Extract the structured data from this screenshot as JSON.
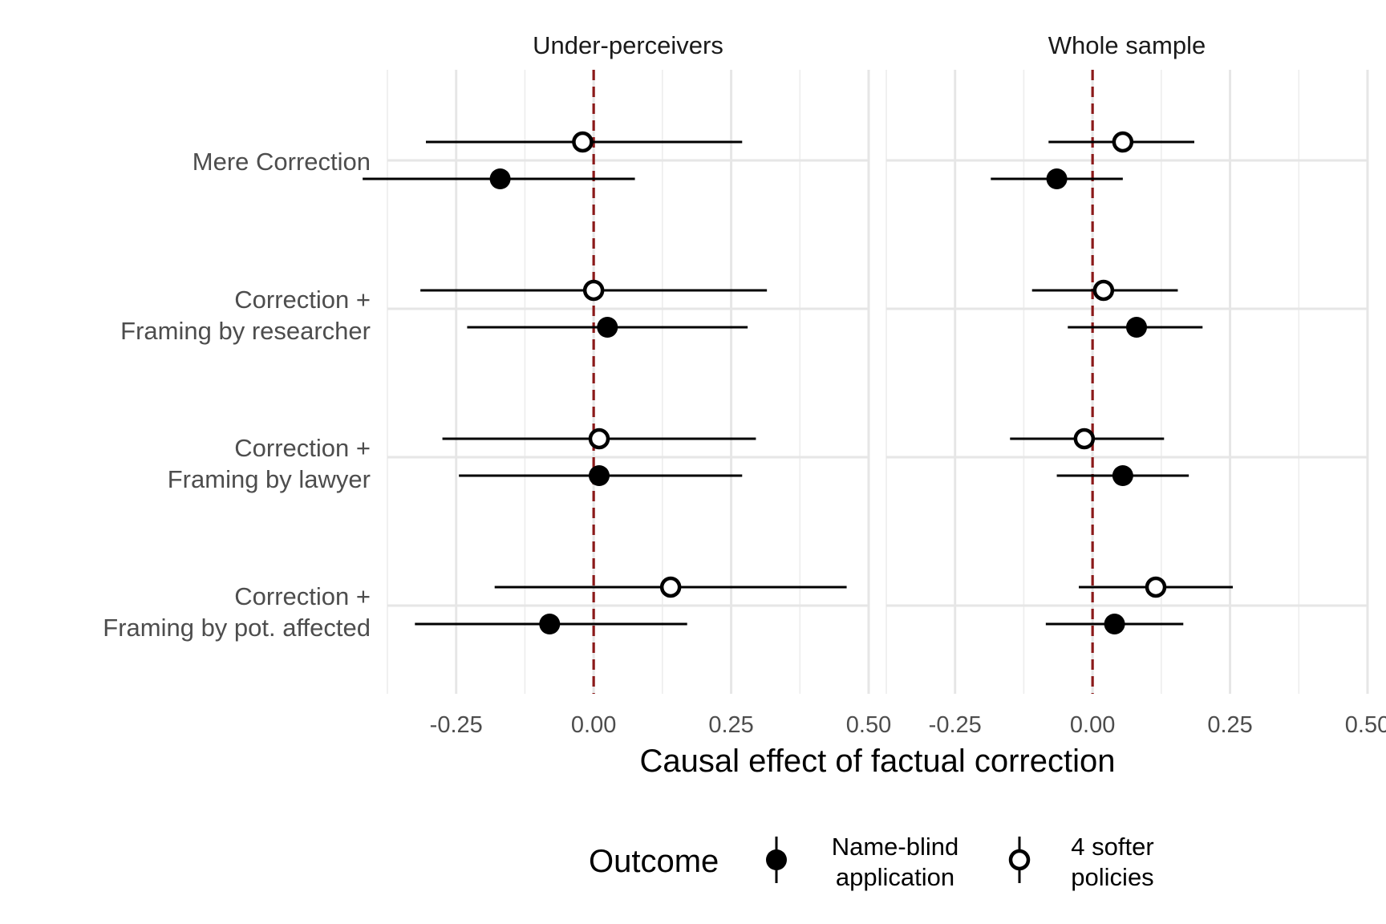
{
  "chart_data": {
    "type": "scatter",
    "subtype": "coefficient-plot with error bars, faceted",
    "xlabel": "Causal effect of factual correction",
    "xticks": [
      -0.25,
      0.0,
      0.25,
      0.5
    ],
    "xtick_labels": [
      "-0.25",
      "0.00",
      "0.25",
      "0.50"
    ],
    "xlim": [
      -0.375,
      0.5
    ],
    "reference_line": {
      "x": 0,
      "style": "dashed",
      "color": "#8b1a1a"
    },
    "grid": true,
    "legend": {
      "title": "Outcome",
      "position": "bottom",
      "entries": [
        {
          "key": "name_blind",
          "line1": "Name-blind",
          "line2": "application",
          "marker": "filled"
        },
        {
          "key": "softer",
          "line1": "4 softer",
          "line2": "policies",
          "marker": "hollow"
        }
      ]
    },
    "categories": [
      {
        "line1": "Mere Correction",
        "line2": ""
      },
      {
        "line1": "Correction +",
        "line2": "Framing by researcher"
      },
      {
        "line1": "Correction +",
        "line2": "Framing by lawyer"
      },
      {
        "line1": "Correction +",
        "line2": "Framing by pot. affected"
      }
    ],
    "panels": [
      {
        "title": "Under-perceivers",
        "series": [
          {
            "key": "softer",
            "estimates": [
              -0.02,
              0.0,
              0.01,
              0.14
            ],
            "ci_low": [
              -0.305,
              -0.315,
              -0.275,
              -0.18
            ],
            "ci_high": [
              0.27,
              0.315,
              0.295,
              0.46
            ]
          },
          {
            "key": "name_blind",
            "estimates": [
              -0.17,
              0.025,
              0.01,
              -0.08
            ],
            "ci_low": [
              -0.42,
              -0.23,
              -0.245,
              -0.325
            ],
            "ci_high": [
              0.075,
              0.28,
              0.27,
              0.17
            ]
          }
        ]
      },
      {
        "title": "Whole sample",
        "series": [
          {
            "key": "softer",
            "estimates": [
              0.055,
              0.02,
              -0.015,
              0.115
            ],
            "ci_low": [
              -0.08,
              -0.11,
              -0.15,
              -0.025
            ],
            "ci_high": [
              0.185,
              0.155,
              0.13,
              0.255
            ]
          },
          {
            "key": "name_blind",
            "estimates": [
              -0.065,
              0.08,
              0.055,
              0.04
            ],
            "ci_low": [
              -0.185,
              -0.045,
              -0.065,
              -0.085
            ],
            "ci_high": [
              0.055,
              0.2,
              0.175,
              0.165
            ]
          }
        ]
      }
    ]
  }
}
